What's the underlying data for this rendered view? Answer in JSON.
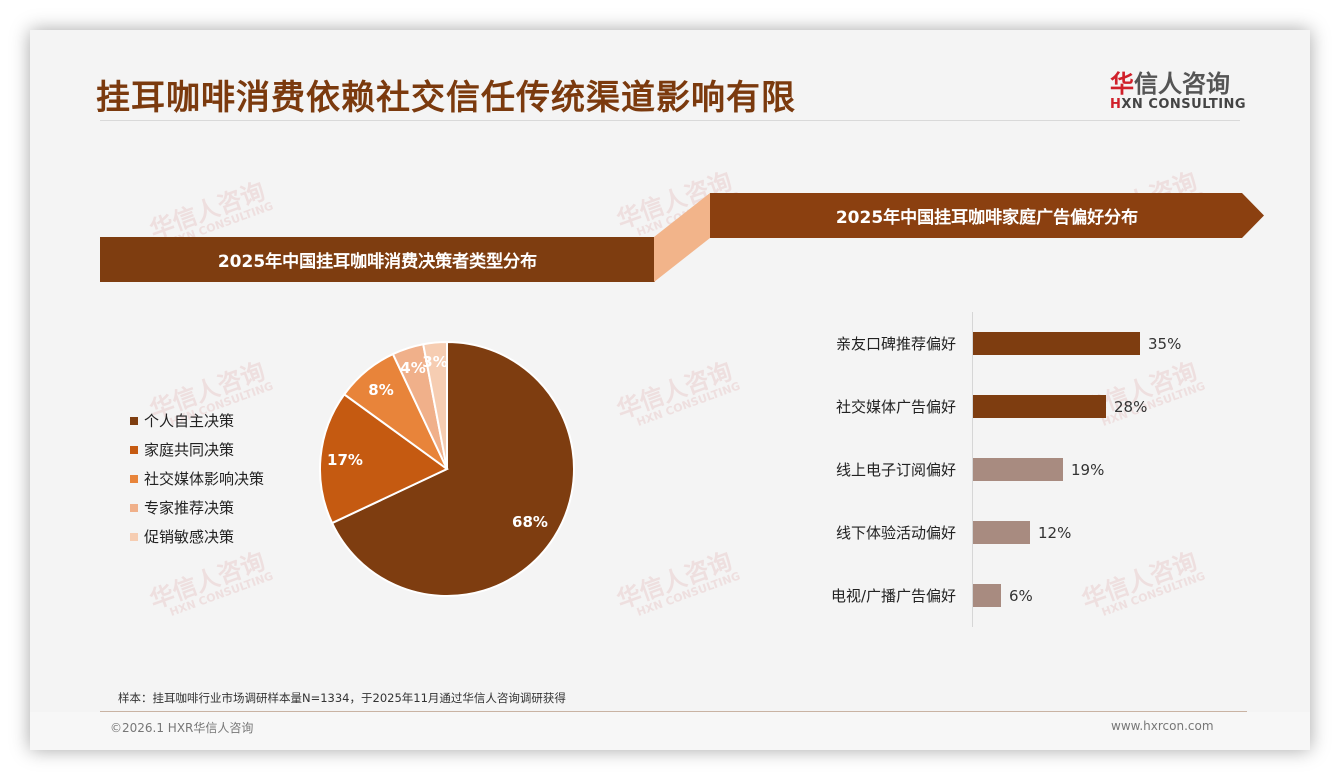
{
  "header": {
    "title": "挂耳咖啡消费依赖社交信任传统渠道影响有限",
    "logo_cn_mark": "华",
    "logo_cn_rest": "信人咨询",
    "logo_en_mark": "H",
    "logo_en_rest": "XN CONSULTING"
  },
  "watermark": {
    "cn": "华信人咨询",
    "en": "HXN CONSULTING"
  },
  "left_panel": {
    "banner": "2025年中国挂耳咖啡消费决策者类型分布"
  },
  "right_panel": {
    "banner": "2025年中国挂耳咖啡家庭广告偏好分布"
  },
  "chart_data": [
    {
      "type": "pie",
      "title": "2025年中国挂耳咖啡消费决策者类型分布",
      "categories": [
        "个人自主决策",
        "家庭共同决策",
        "社交媒体影响决策",
        "专家推荐决策",
        "促销敏感决策"
      ],
      "values": [
        68,
        17,
        8,
        4,
        3
      ],
      "labels": [
        "68%",
        "17%",
        "8%",
        "4%",
        "3%"
      ],
      "colors": [
        "#7e3d10",
        "#c55a11",
        "#e8843a",
        "#f0b08a",
        "#f6cdb2"
      ],
      "legend_position": "left",
      "start_angle": "12 o'clock, clockwise"
    },
    {
      "type": "bar",
      "orientation": "horizontal",
      "title": "2025年中国挂耳咖啡家庭广告偏好分布",
      "categories": [
        "亲友口碑推荐偏好",
        "社交媒体广告偏好",
        "线上电子订阅偏好",
        "线下体验活动偏好",
        "电视/广播广告偏好"
      ],
      "values": [
        35,
        28,
        19,
        12,
        6
      ],
      "labels": [
        "35%",
        "28%",
        "19%",
        "12%",
        "6%"
      ],
      "colors": [
        "#7e3d10",
        "#7e3d10",
        "#a88b80",
        "#a88b80",
        "#a88b80"
      ],
      "unit": "%",
      "grid": false
    }
  ],
  "footer": {
    "note": "样本：挂耳咖啡行业市场调研样本量N=1334，于2025年11月通过华信人咨询调研获得",
    "copyright": "©2026.1 HXR华信人咨询",
    "website": "www.hxrcon.com"
  }
}
